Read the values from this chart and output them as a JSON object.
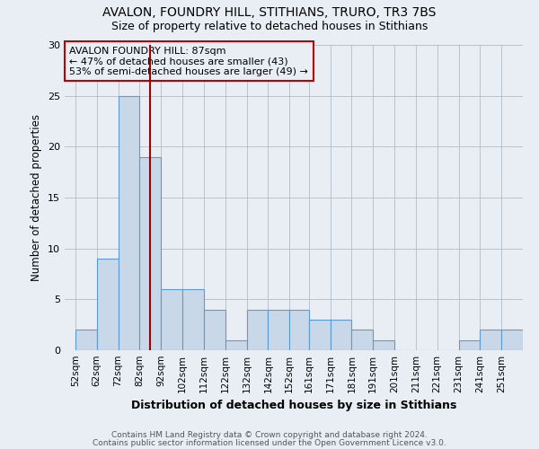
{
  "title1": "AVALON, FOUNDRY HILL, STITHIANS, TRURO, TR3 7BS",
  "title2": "Size of property relative to detached houses in Stithians",
  "xlabel": "Distribution of detached houses by size in Stithians",
  "ylabel": "Number of detached properties",
  "bins": [
    52,
    62,
    72,
    82,
    92,
    102,
    112,
    122,
    132,
    142,
    152,
    161,
    171,
    181,
    191,
    201,
    211,
    221,
    231,
    241,
    251
  ],
  "heights": [
    2,
    9,
    25,
    19,
    6,
    6,
    4,
    1,
    4,
    4,
    4,
    3,
    3,
    2,
    1,
    0,
    0,
    0,
    1,
    2,
    2
  ],
  "bar_color": "#c8d8e8",
  "bar_edge_color": "#5b9bd5",
  "vline_x": 87,
  "vline_color": "#a00000",
  "annotation_title": "AVALON FOUNDRY HILL: 87sqm",
  "annotation_line2": "← 47% of detached houses are smaller (43)",
  "annotation_line3": "53% of semi-detached houses are larger (49) →",
  "annotation_box_edge_color": "#c00000",
  "footer1": "Contains HM Land Registry data © Crown copyright and database right 2024.",
  "footer2": "Contains public sector information licensed under the Open Government Licence v3.0.",
  "ylim": [
    0,
    30
  ],
  "yticks": [
    0,
    5,
    10,
    15,
    20,
    25,
    30
  ],
  "bg_color": "#e8eef4",
  "fig_bg_color": "#e8eef4"
}
